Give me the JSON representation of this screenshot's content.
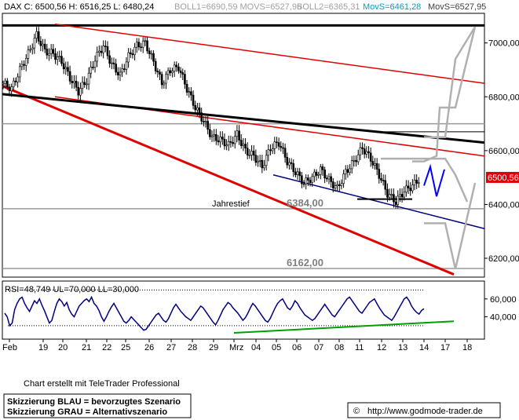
{
  "header": {
    "dax_label": "DAX C: 6500,56 H: 6516,25 L: 6480,24",
    "boll1_label": "BOLL1=6690,59 MOVS=6527,95",
    "boll2_label": "BOLL2=6365,31",
    "movs_label": "MovS=6461,28",
    "movs2_label": "MovS=6527,95"
  },
  "footer": {
    "credit": "Chart erstellt mit TeleTrader Professional",
    "legend_blue": "Skizzierung BLAU = bevorzugtes Szenario",
    "legend_gray": "Skizzierung GRAU = Alternativszenario",
    "copyright_symbol": "©",
    "website": "http://www.godmode-trader.de"
  },
  "colors": {
    "price": "#000000",
    "red_channel": "#e00000",
    "navy_support": "#000080",
    "blue_scenario": "#0000ff",
    "gray_scenario": "#b0b0b0",
    "rsi_line": "#000080",
    "rsi_trend": "#00a000",
    "price_tag_bg": "#e00000"
  },
  "chart_data": [
    {
      "type": "candlestick",
      "instrument": "DAX",
      "x_ticks": [
        "Feb",
        "19",
        "20",
        "21",
        "22",
        "25",
        "26",
        "27",
        "28",
        "29",
        "Mrz",
        "04",
        "05",
        "06",
        "07",
        "08",
        "11",
        "12",
        "13",
        "14",
        "17",
        "18"
      ],
      "y_ticks": [
        "7000,00",
        "6800,00",
        "6600,00",
        "6400,00",
        "6200,00"
      ],
      "y_tick_values": [
        7000,
        6800,
        6600,
        6400,
        6200
      ],
      "ylim": [
        6130,
        7110
      ],
      "last_price": 6500.56,
      "last_price_label": "6500,56",
      "annotations": {
        "jahrestief": "Jahrestief",
        "level_6384": "6384,00",
        "level_6162": "6162,00"
      },
      "horizontal_levels": [
        7065,
        6700,
        6384,
        6162
      ],
      "close_path": [
        [
          0,
          6850
        ],
        [
          4,
          6830
        ],
        [
          8,
          6900
        ],
        [
          12,
          6960
        ],
        [
          16,
          7030
        ],
        [
          20,
          6970
        ],
        [
          24,
          6960
        ],
        [
          28,
          6930
        ],
        [
          32,
          6870
        ],
        [
          36,
          6820
        ],
        [
          40,
          6860
        ],
        [
          44,
          6940
        ],
        [
          48,
          6990
        ],
        [
          52,
          6920
        ],
        [
          56,
          6880
        ],
        [
          60,
          6950
        ],
        [
          64,
          6990
        ],
        [
          68,
          7000
        ],
        [
          72,
          6930
        ],
        [
          76,
          6850
        ],
        [
          80,
          6900
        ],
        [
          84,
          6910
        ],
        [
          88,
          6830
        ],
        [
          92,
          6760
        ],
        [
          96,
          6710
        ],
        [
          100,
          6650
        ],
        [
          104,
          6640
        ],
        [
          108,
          6620
        ],
        [
          112,
          6660
        ],
        [
          116,
          6600
        ],
        [
          120,
          6580
        ],
        [
          124,
          6540
        ],
        [
          128,
          6610
        ],
        [
          132,
          6630
        ],
        [
          136,
          6560
        ],
        [
          140,
          6520
        ],
        [
          144,
          6480
        ],
        [
          148,
          6500
        ],
        [
          152,
          6530
        ],
        [
          156,
          6490
        ],
        [
          160,
          6460
        ],
        [
          164,
          6520
        ],
        [
          168,
          6560
        ],
        [
          172,
          6610
        ],
        [
          176,
          6570
        ],
        [
          180,
          6510
        ],
        [
          184,
          6440
        ],
        [
          188,
          6410
        ],
        [
          192,
          6450
        ],
        [
          196,
          6470
        ],
        [
          200,
          6500
        ]
      ]
    },
    {
      "type": "line",
      "title": "RSI=48,749 UL=70,000 LL=30,000",
      "y_ticks": [
        "60,000",
        "40,000"
      ],
      "y_tick_values": [
        60,
        40
      ],
      "ylim": [
        15,
        80
      ],
      "upper_level": 70,
      "lower_level": 30,
      "values": [
        44,
        40,
        30,
        33,
        48,
        55,
        60,
        62,
        55,
        50,
        46,
        52,
        58,
        55,
        60,
        53,
        47,
        40,
        33,
        36,
        46,
        55,
        60,
        57,
        52,
        56,
        48,
        43,
        40,
        46,
        52,
        55,
        58,
        60,
        57,
        62,
        55,
        52,
        47,
        40,
        35,
        40,
        46,
        51,
        55,
        50,
        45,
        40,
        35,
        33,
        36,
        40,
        37,
        34,
        31,
        28,
        25,
        26,
        30,
        34,
        38,
        42,
        44,
        40,
        36,
        34,
        38,
        44,
        50,
        54,
        50,
        46,
        43,
        40,
        38,
        36,
        40,
        44,
        48,
        52,
        50,
        46,
        42,
        38,
        34,
        31,
        36,
        42,
        48,
        52,
        56,
        54,
        50,
        47,
        44,
        40,
        36,
        39,
        44,
        50,
        55,
        52,
        48,
        44,
        40,
        36,
        34,
        38,
        44,
        50,
        55,
        58,
        60,
        55,
        50,
        48,
        52,
        58,
        55,
        50,
        46,
        42,
        40,
        38,
        36,
        38,
        42,
        46,
        50,
        54,
        50,
        46,
        42,
        40,
        44,
        48,
        52,
        56,
        60,
        62,
        58,
        54,
        50,
        46,
        44,
        48,
        52,
        56,
        58,
        60,
        55,
        50,
        46,
        42,
        40,
        38,
        36,
        40,
        45,
        50,
        55,
        60,
        62,
        58,
        52,
        48,
        45,
        43,
        47,
        49
      ]
    }
  ]
}
